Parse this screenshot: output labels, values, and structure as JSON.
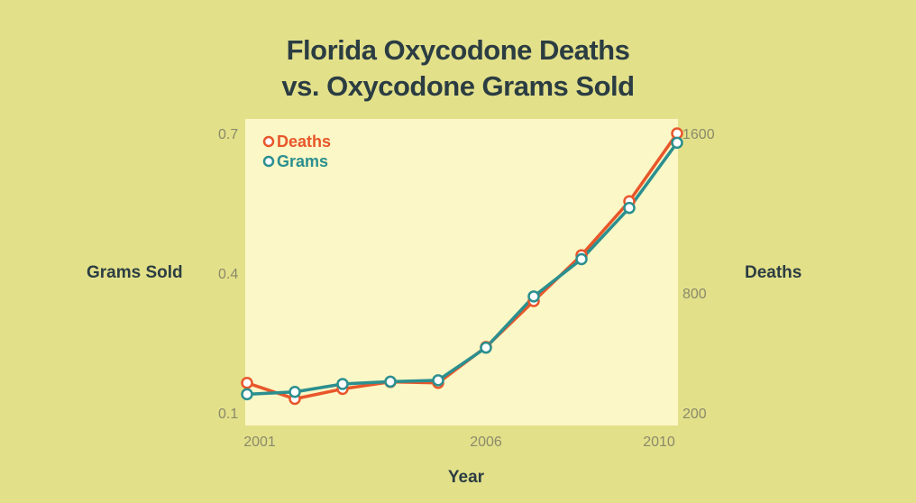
{
  "title_line1": "Florida Oxycodone Deaths",
  "title_line2": "vs. Oxycodone Grams Sold",
  "chart_data": {
    "type": "line",
    "title": "Florida Oxycodone Deaths vs. Oxycodone Grams Sold",
    "xlabel": "Year",
    "ylabel_left": "Grams Sold",
    "ylabel_right": "Deaths",
    "x": [
      2001,
      2002,
      2003,
      2004,
      2005,
      2006,
      2007,
      2008,
      2009,
      2010
    ],
    "x_ticks": [
      "2001",
      "2006",
      "2010"
    ],
    "x_tick_values": [
      2001,
      2006,
      2010
    ],
    "y_left_ticks": [
      "0.7",
      "0.4",
      "0.1"
    ],
    "y_left_tick_values": [
      0.7,
      0.4,
      0.1
    ],
    "y_right_ticks": [
      "1600",
      "800",
      "200"
    ],
    "y_right_tick_values": [
      1600,
      800,
      200
    ],
    "ylim_left": [
      0.1,
      0.7
    ],
    "ylim_right": [
      200,
      1600
    ],
    "legend_position": "top-left",
    "grid": false,
    "series": [
      {
        "name": "Deaths",
        "axis": "right",
        "color": "#e8562a",
        "values": [
          350,
          270,
          320,
          355,
          350,
          530,
          760,
          990,
          1260,
          1600
        ]
      },
      {
        "name": "Grams",
        "axis": "left",
        "color": "#2b8f8f",
        "values": [
          0.14,
          0.145,
          0.162,
          0.167,
          0.17,
          0.24,
          0.35,
          0.43,
          0.54,
          0.68
        ]
      }
    ]
  }
}
